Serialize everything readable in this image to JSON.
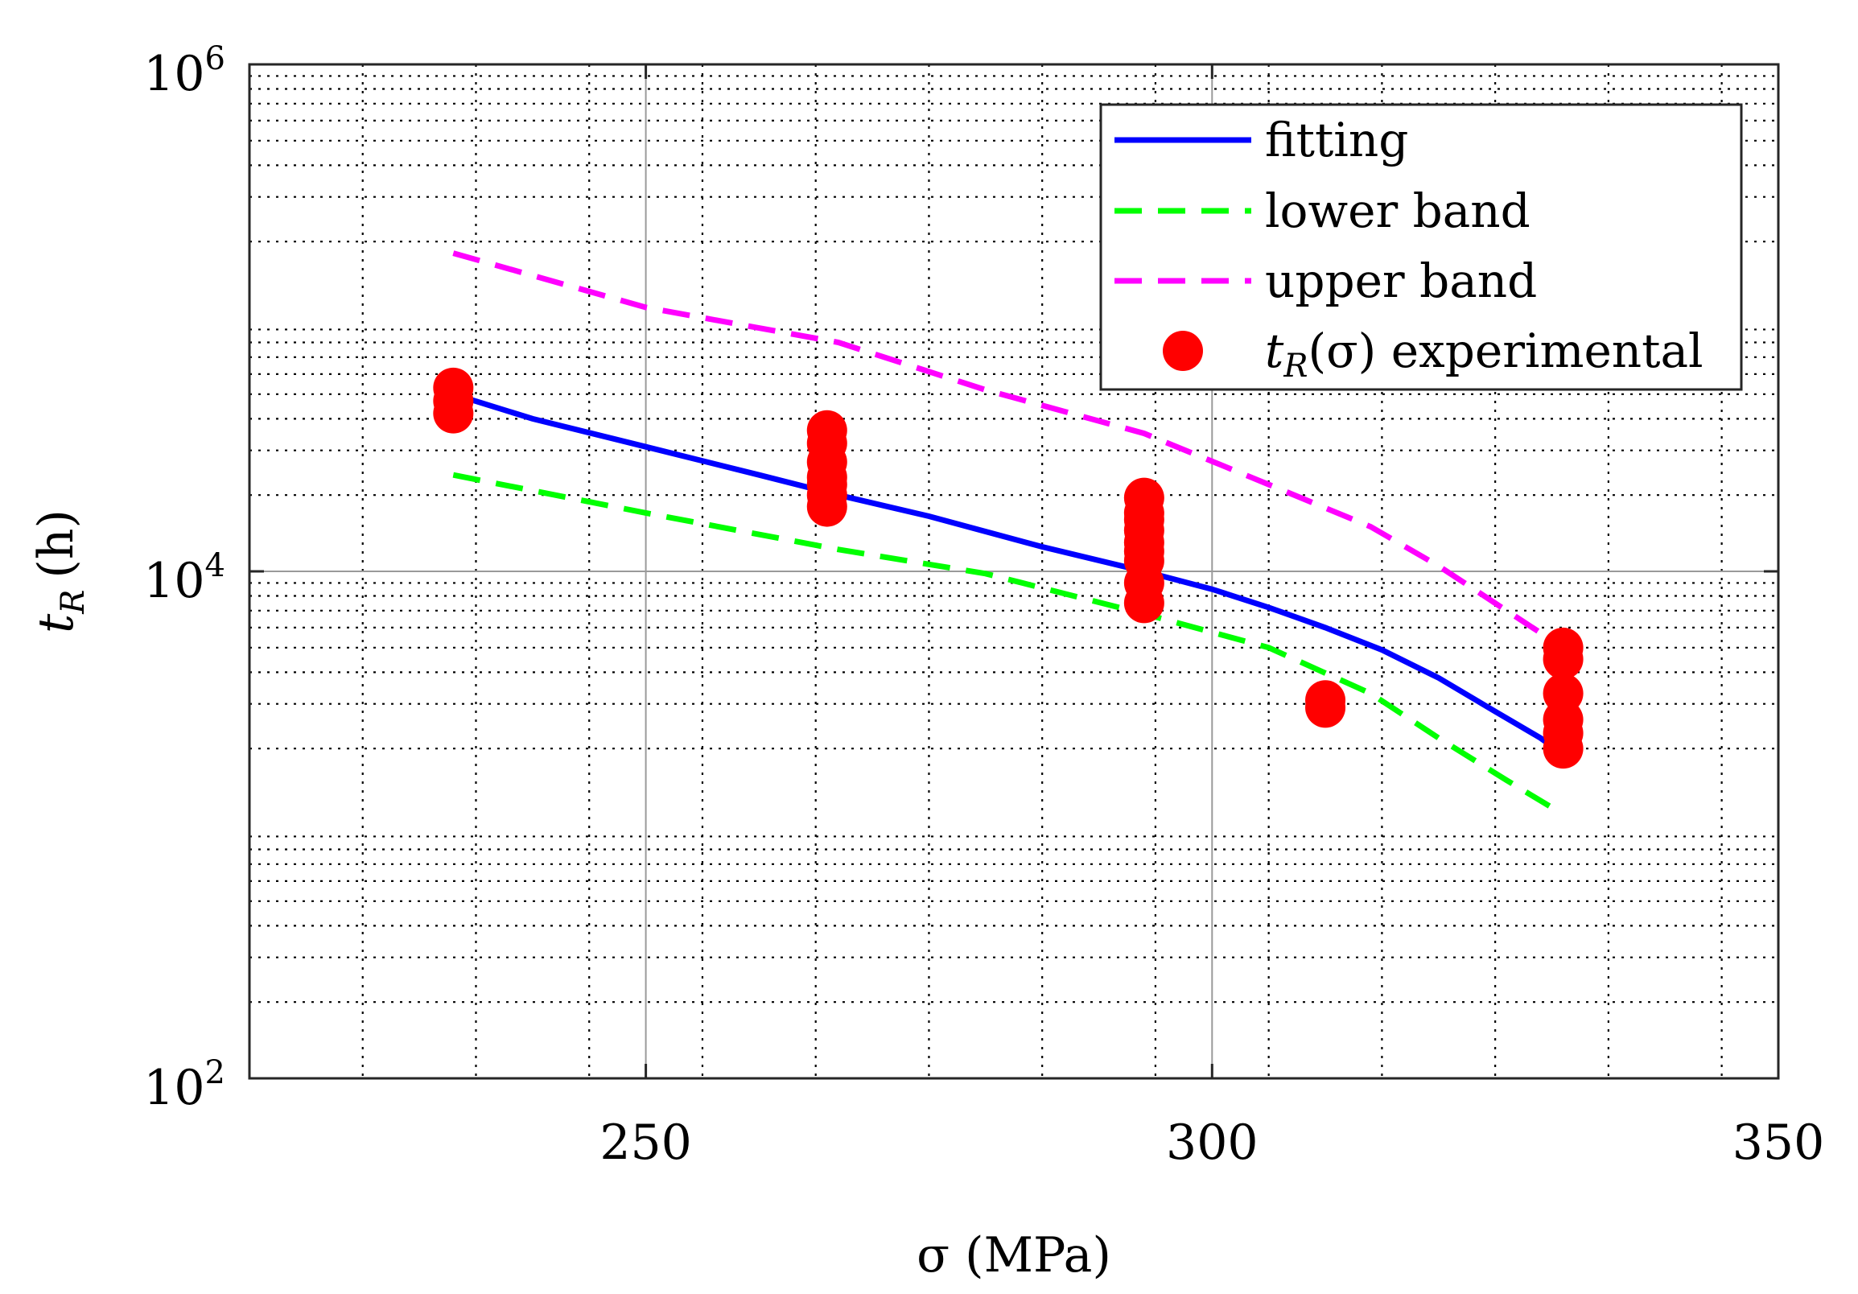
{
  "chart_data": {
    "type": "scatter",
    "title": "",
    "xlabel": "σ (MPa)",
    "ylabel": "t_R (h)",
    "ylabel_main": "t",
    "ylabel_sub": "R",
    "ylabel_unit": "(h)",
    "xscale": "linear",
    "yscale": "log",
    "xlim": [
      215,
      350
    ],
    "ylim": [
      100,
      1000000
    ],
    "xticks": [
      250,
      300,
      350
    ],
    "xtick_labels": [
      "250",
      "300",
      "350"
    ],
    "yticks": [
      100,
      10000,
      1000000
    ],
    "ytick_base": [
      "10",
      "10",
      "10"
    ],
    "ytick_exp": [
      "2",
      "4",
      "6"
    ],
    "grid": true,
    "legend_position": "top-right",
    "series": [
      {
        "name": "fitting",
        "style": "solid",
        "color": "#0000ff",
        "x": [
          233,
          240,
          250,
          260,
          267,
          275,
          285,
          294,
          300,
          305,
          310,
          315,
          320,
          325,
          329,
          331
        ],
        "y": [
          50000,
          40000,
          31000,
          24000,
          20000,
          16500,
          12500,
          10000,
          8500,
          7200,
          6000,
          4900,
          3800,
          2800,
          2200,
          1900
        ]
      },
      {
        "name": "lower band",
        "style": "dashed",
        "color": "#00ff00",
        "x": [
          233,
          250,
          267,
          280,
          294,
          305,
          314,
          320,
          326,
          331
        ],
        "y": [
          24000,
          17000,
          12200,
          9800,
          6800,
          5000,
          3300,
          2200,
          1500,
          1100
        ]
      },
      {
        "name": "upper band",
        "style": "dashed",
        "color": "#ff00ff",
        "x": [
          233,
          250,
          267,
          280,
          294,
          305,
          314,
          320,
          326,
          331
        ],
        "y": [
          180000,
          110000,
          80000,
          52000,
          35000,
          22000,
          15000,
          10500,
          7000,
          5000
        ]
      },
      {
        "name": "t_R(σ) experimental",
        "style": "markers",
        "color": "#ff0000",
        "x": [
          233,
          233,
          233,
          266,
          266,
          266,
          266,
          266,
          266,
          266,
          294,
          294,
          294,
          294,
          294,
          294,
          294,
          294,
          294,
          310,
          310,
          331,
          331,
          331,
          331,
          331,
          331
        ],
        "y": [
          42000,
          47000,
          53000,
          18000,
          20000,
          22000,
          23500,
          27000,
          32000,
          36000,
          11000,
          12000,
          13000,
          14500,
          16000,
          17000,
          19500,
          7500,
          9000,
          2900,
          3100,
          2000,
          2300,
          2600,
          3300,
          4500,
          5000
        ]
      }
    ],
    "legend_entries": [
      {
        "label": "fitting"
      },
      {
        "label": "lower band"
      },
      {
        "label": "upper band"
      },
      {
        "label_main": "t",
        "label_sub": "R",
        "label_rest": "(σ) experimental"
      }
    ]
  }
}
